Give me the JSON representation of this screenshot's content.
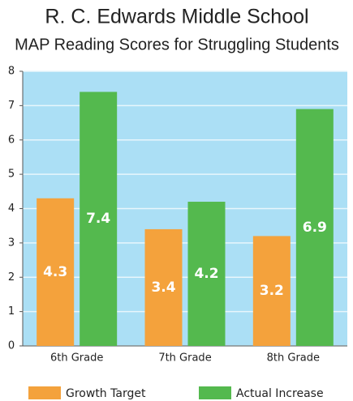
{
  "chart_data": {
    "type": "bar",
    "title": "R. C. Edwards Middle School",
    "subtitle": "MAP Reading Scores for Struggling Students",
    "categories": [
      "6th Grade",
      "7th Grade",
      "8th Grade"
    ],
    "series": [
      {
        "name": "Growth Target",
        "color": "#f4a23c",
        "values": [
          4.3,
          3.4,
          3.2
        ]
      },
      {
        "name": "Actual Increase",
        "color": "#54b94e",
        "values": [
          7.4,
          4.2,
          6.9
        ]
      }
    ],
    "ylim": [
      0,
      8
    ],
    "yticks": [
      0,
      1,
      2,
      3,
      4,
      5,
      6,
      7,
      8
    ],
    "grid": true,
    "background": "#abdff5",
    "legend": "bottom"
  }
}
